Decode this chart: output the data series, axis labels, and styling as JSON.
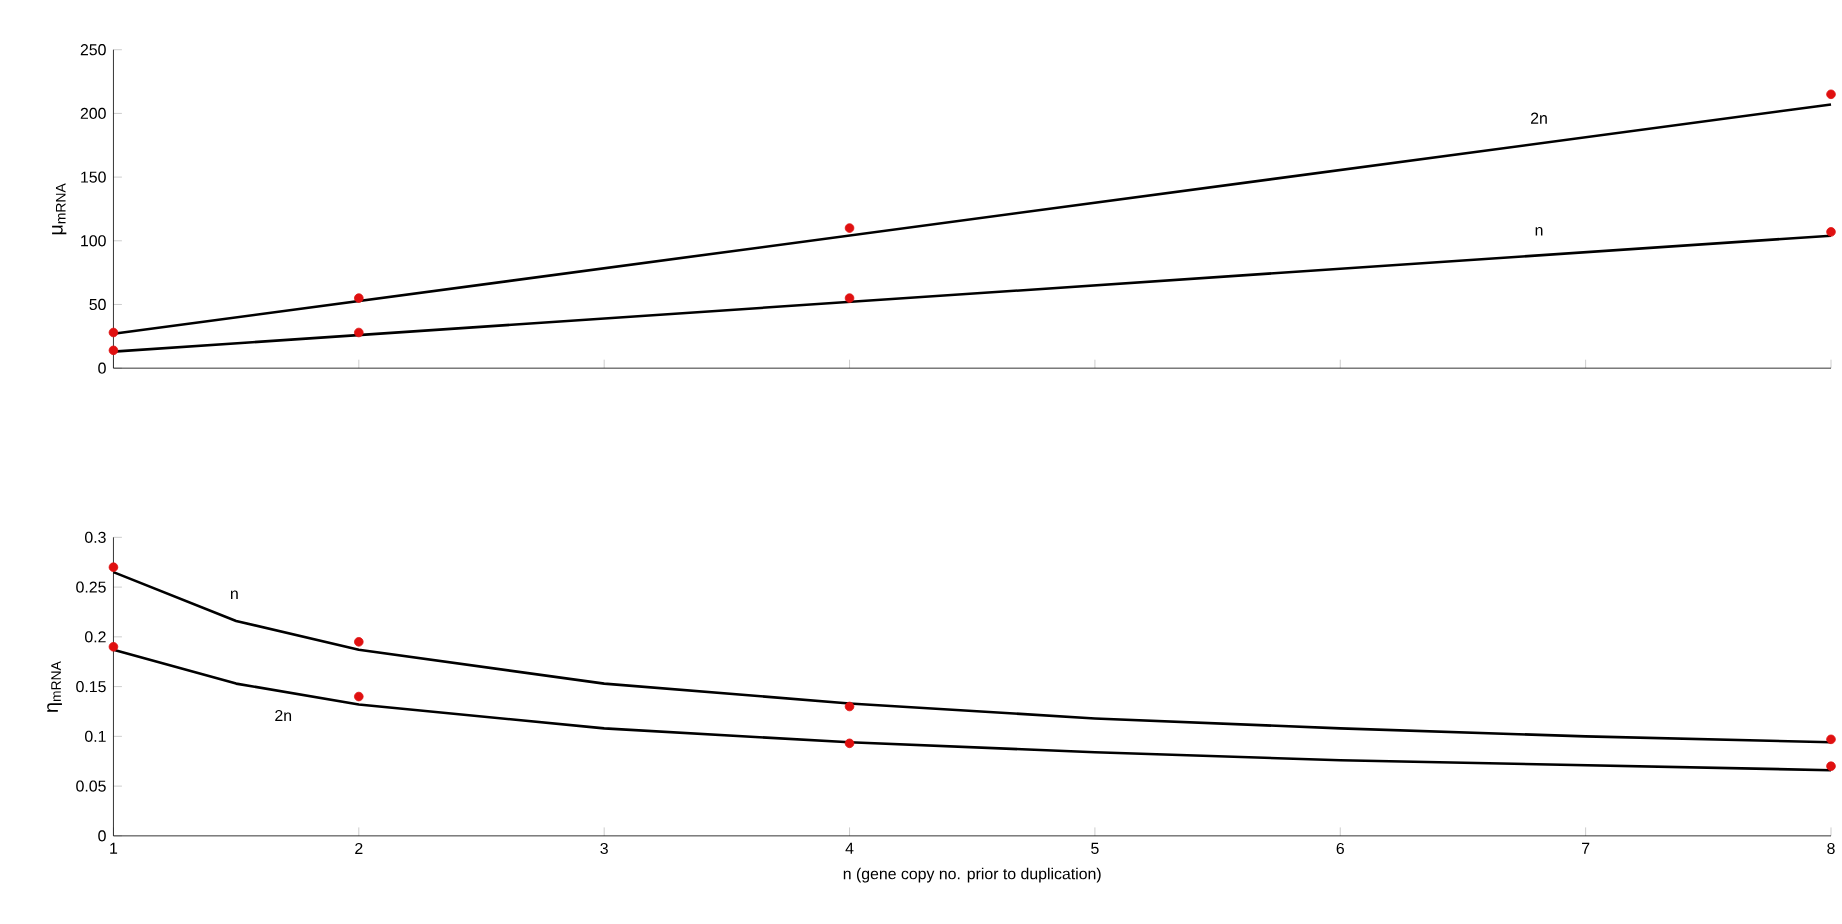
{
  "chart_data": [
    {
      "type": "line",
      "ylabel": "μ$_{mRNA}$",
      "xlim": [
        1,
        8
      ],
      "xticks": [
        1,
        2,
        3,
        4,
        5,
        6,
        7,
        8
      ],
      "ylim": [
        0,
        250
      ],
      "yticks": [
        0,
        50,
        100,
        150,
        200,
        250
      ],
      "tick_labels": "y",
      "series": [
        {
          "name": "2n",
          "marker": "none",
          "color": "#000000",
          "x": [
            1,
            8
          ],
          "values": [
            27,
            207
          ]
        },
        {
          "name": "n",
          "marker": "none",
          "color": "#000000",
          "x": [
            1,
            8
          ],
          "values": [
            13,
            104
          ]
        },
        {
          "type": "scatter",
          "marker": "circle",
          "color": "#e01010",
          "x": [
            1,
            2,
            4,
            8
          ],
          "values": [
            28,
            55,
            110,
            215
          ]
        },
        {
          "type": "scatter",
          "marker": "circle",
          "color": "#e01010",
          "x": [
            1,
            2,
            4,
            8
          ],
          "values": [
            14,
            28,
            55,
            107
          ]
        }
      ]
    },
    {
      "type": "line",
      "ylabel": "η$_{mRNA}$",
      "xlabel": "n (gene copy no. prior to duplication)",
      "xlim": [
        1,
        8
      ],
      "xticks": [
        1,
        2,
        3,
        4,
        5,
        6,
        7,
        8
      ],
      "ylim": [
        0,
        0.3
      ],
      "yticks": [
        0,
        0.05,
        0.1,
        0.15,
        0.2,
        0.25,
        0.3
      ],
      "series": [
        {
          "name": "n",
          "marker": "none",
          "color": "#000000",
          "x": [
            1,
            1.5,
            2,
            3,
            4,
            5,
            6,
            7,
            8
          ],
          "values": [
            0.265,
            0.216,
            0.187,
            0.153,
            0.133,
            0.118,
            0.108,
            0.1,
            0.094
          ]
        },
        {
          "name": "2n",
          "marker": "none",
          "color": "#000000",
          "x": [
            1,
            1.5,
            2,
            3,
            4,
            5,
            6,
            7,
            8
          ],
          "values": [
            0.187,
            0.153,
            0.132,
            0.108,
            0.094,
            0.084,
            0.076,
            0.071,
            0.066
          ]
        },
        {
          "type": "scatter",
          "marker": "circle",
          "color": "#e01010",
          "x": [
            1,
            2,
            4,
            8
          ],
          "values": [
            0.27,
            0.195,
            0.13,
            0.097
          ]
        },
        {
          "type": "scatter",
          "marker": "circle",
          "color": "#e01010",
          "x": [
            1,
            2,
            4,
            8
          ],
          "values": [
            0.19,
            0.14,
            0.093,
            0.07
          ]
        }
      ]
    }
  ]
}
